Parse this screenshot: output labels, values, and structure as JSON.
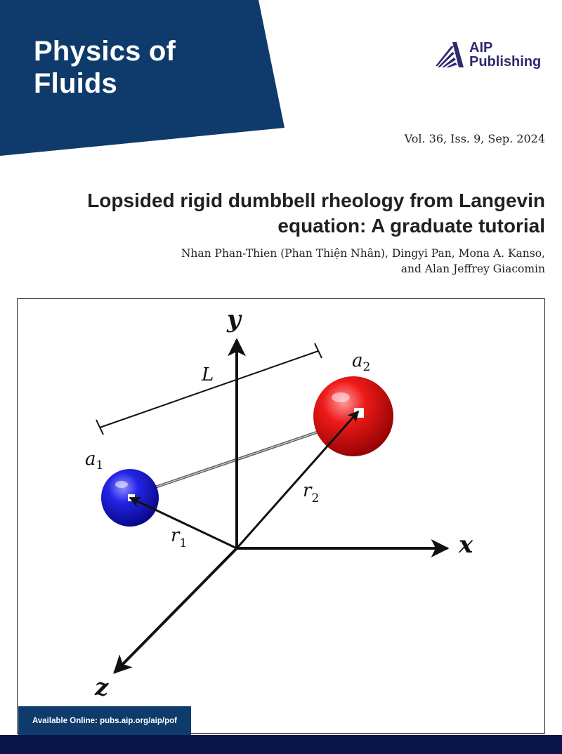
{
  "journal": {
    "title_line1": "Physics of",
    "title_line2": "Fluids",
    "banner_color": "#0e3b6b"
  },
  "publisher": {
    "line1": "AIP",
    "line2": "Publishing",
    "color": "#2d2a6e",
    "icon": "aip-logo-icon"
  },
  "issue": "Vol. 36, Iss. 9, Sep. 2024",
  "article": {
    "title_line1": "Lopsided rigid dumbbell rheology from Langevin",
    "title_line2": "equation: A graduate tutorial",
    "authors_line1": "Nhan Phan-Thien (Phan Thiện Nhân), Dingyi Pan, Mona A. Kanso,",
    "authors_line2": "and Alan Jeffrey Giacomin"
  },
  "figure": {
    "axis_y": "y",
    "axis_x": "x",
    "axis_z": "z",
    "length_label": "L",
    "bead1": {
      "label": "a",
      "sub": "1",
      "color": "#1414d0"
    },
    "bead2": {
      "label": "a",
      "sub": "2",
      "color": "#e01010"
    },
    "vector1": {
      "label": "r",
      "sub": "1"
    },
    "vector2": {
      "label": "r",
      "sub": "2"
    }
  },
  "footer": {
    "available": "Available Online: pubs.aip.org/aip/pof",
    "bar_color": "#0b1449"
  }
}
